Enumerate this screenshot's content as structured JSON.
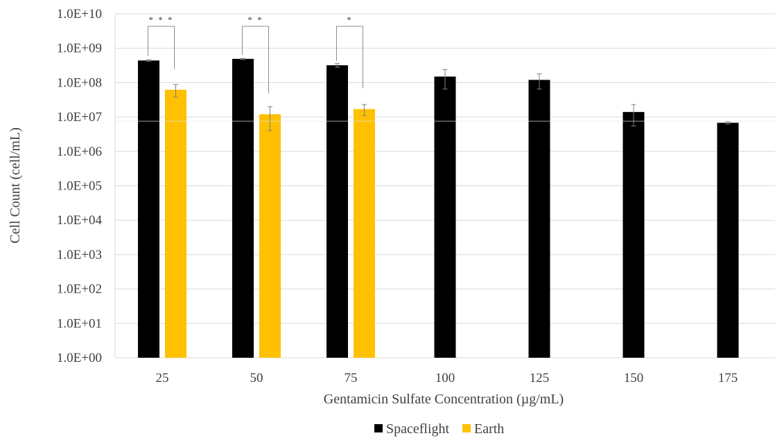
{
  "chart_data": {
    "type": "bar",
    "y_scale": "log",
    "ylim": [
      1,
      10000000000
    ],
    "ytick_labels": [
      "1.0E+00",
      "1.0E+01",
      "1.0E+02",
      "1.0E+03",
      "1.0E+04",
      "1.0E+05",
      "1.0E+06",
      "1.0E+07",
      "1.0E+08",
      "1.0E+09",
      "1.0E+10"
    ],
    "categories": [
      "25",
      "50",
      "75",
      "100",
      "125",
      "150",
      "175"
    ],
    "xlabel": "Gentamicin Sulfate Concentration (µg/mL)",
    "ylabel": "Cell Count (cell/mL)",
    "grid": true,
    "legend_position": "bottom",
    "series": [
      {
        "name": "Spaceflight",
        "color": "#000000",
        "values": [
          440000000,
          490000000,
          320000000,
          150000000,
          120000000,
          14000000,
          6800000
        ],
        "err_low": [
          420000000,
          470000000,
          280000000,
          65000000,
          65000000,
          5500000,
          6300000
        ],
        "err_high": [
          460000000,
          510000000,
          360000000,
          240000000,
          180000000,
          23000000,
          7300000
        ]
      },
      {
        "name": "Earth",
        "color": "#ffc000",
        "values": [
          62000000,
          12000000,
          17000000,
          null,
          null,
          null,
          null
        ],
        "err_low": [
          38000000,
          4000000,
          11000000,
          null,
          null,
          null,
          null
        ],
        "err_high": [
          88000000,
          20000000,
          23000000,
          null,
          null,
          null,
          null
        ]
      }
    ],
    "significance": [
      {
        "category": "25",
        "label": "* * *"
      },
      {
        "category": "50",
        "label": "* *"
      },
      {
        "category": "75",
        "label": "*"
      }
    ]
  }
}
